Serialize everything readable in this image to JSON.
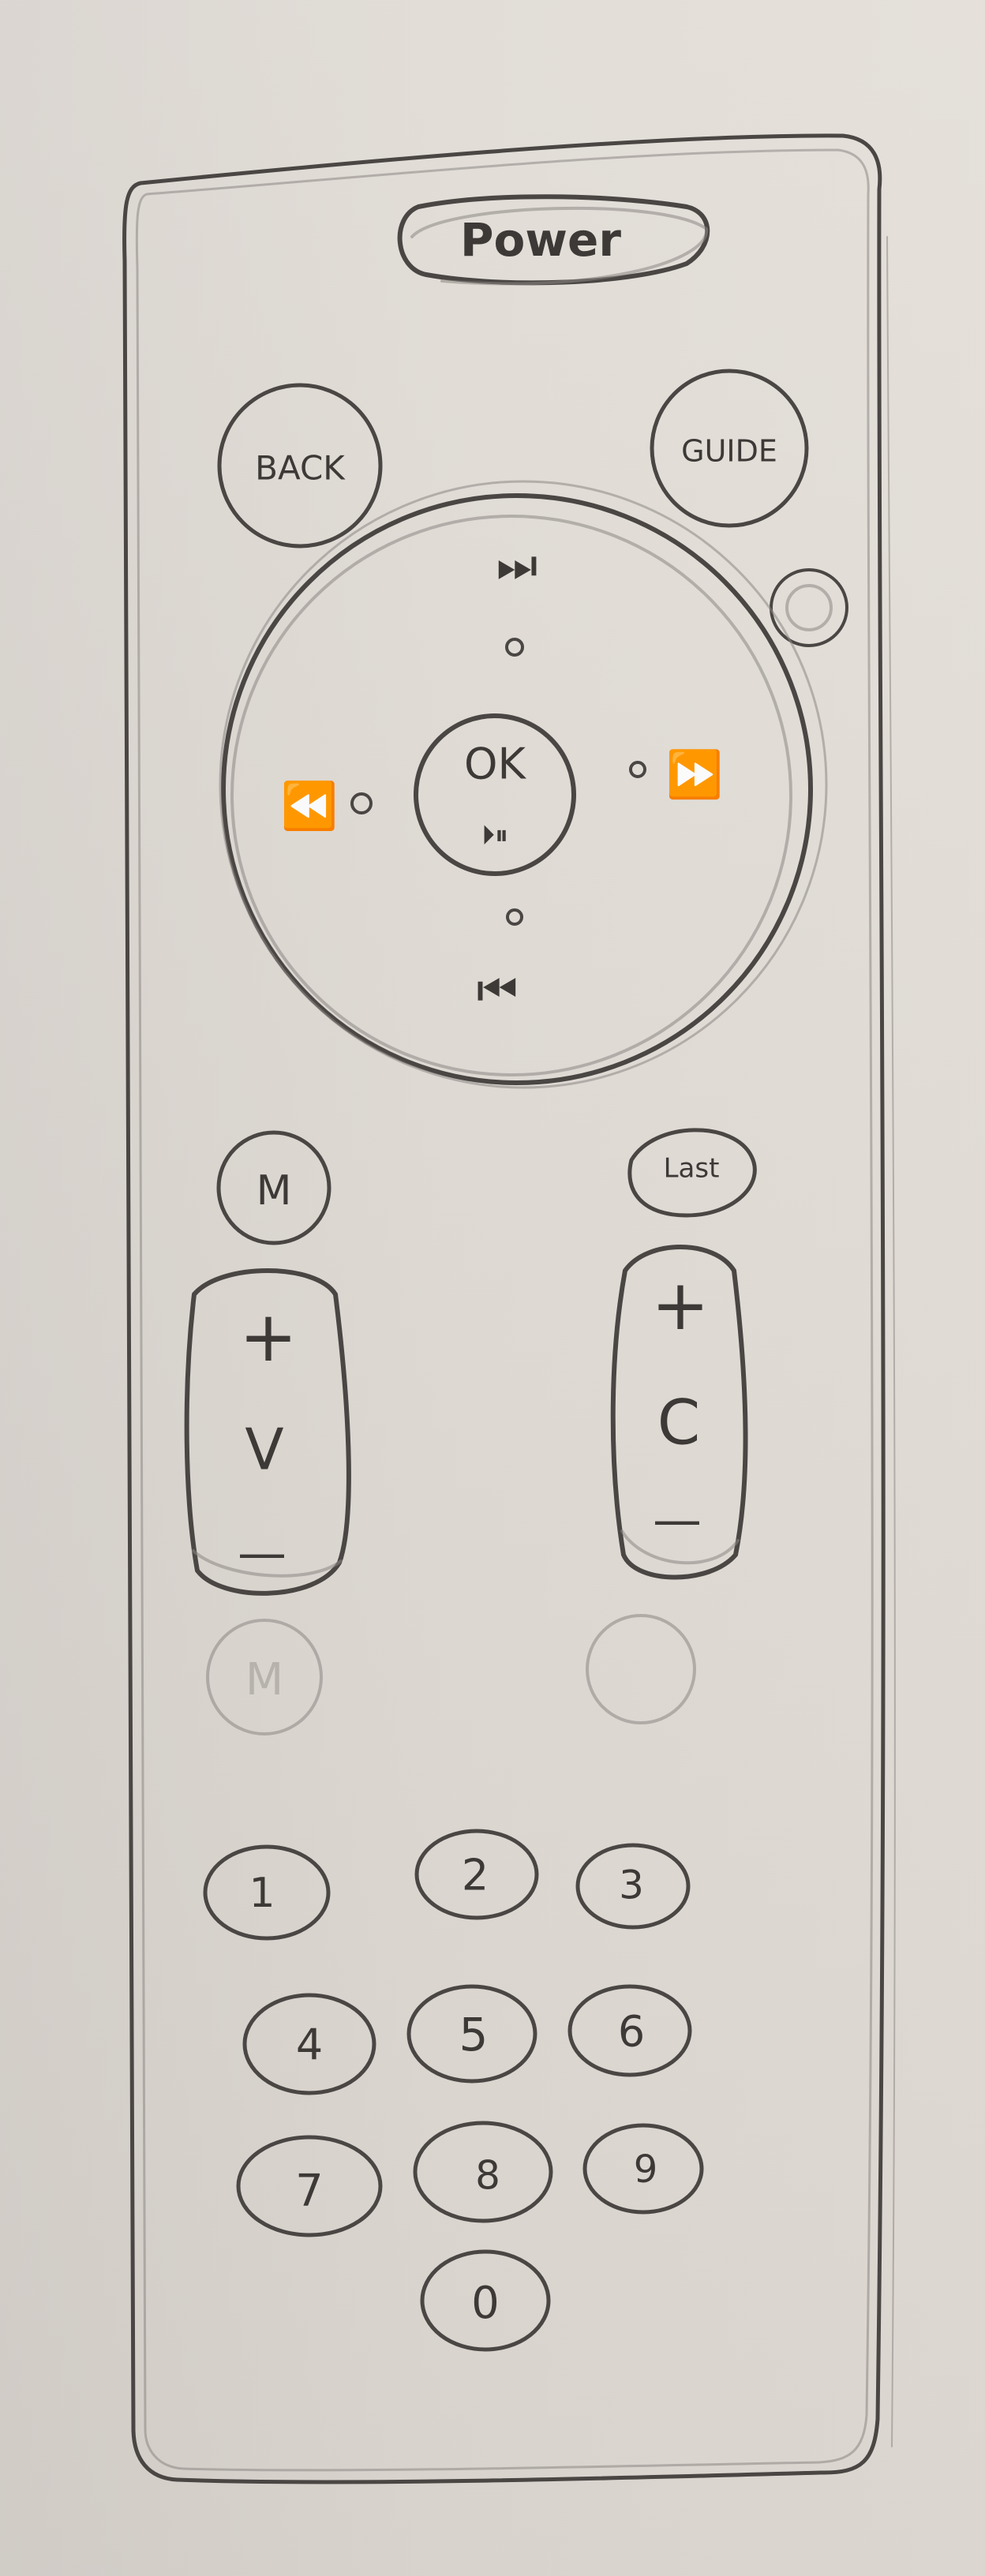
{
  "remote": {
    "power_label": "Power",
    "back_label": "BACK",
    "guide_label": "GUIDE",
    "ok_label": "OK",
    "play_pause_symbol": "⏵⏸",
    "up_symbol": "⏭",
    "down_symbol": "⏮",
    "left_symbol": "⏪",
    "right_symbol": "⏩",
    "mute_label": "M",
    "last_label": "Last",
    "volume": {
      "plus": "+",
      "label": "V",
      "minus": "—"
    },
    "channel": {
      "plus": "+",
      "label": "C",
      "minus": "—"
    },
    "faded_left_label": "M",
    "keypad": [
      "1",
      "2",
      "3",
      "4",
      "5",
      "6",
      "7",
      "8",
      "9",
      "0"
    ]
  }
}
